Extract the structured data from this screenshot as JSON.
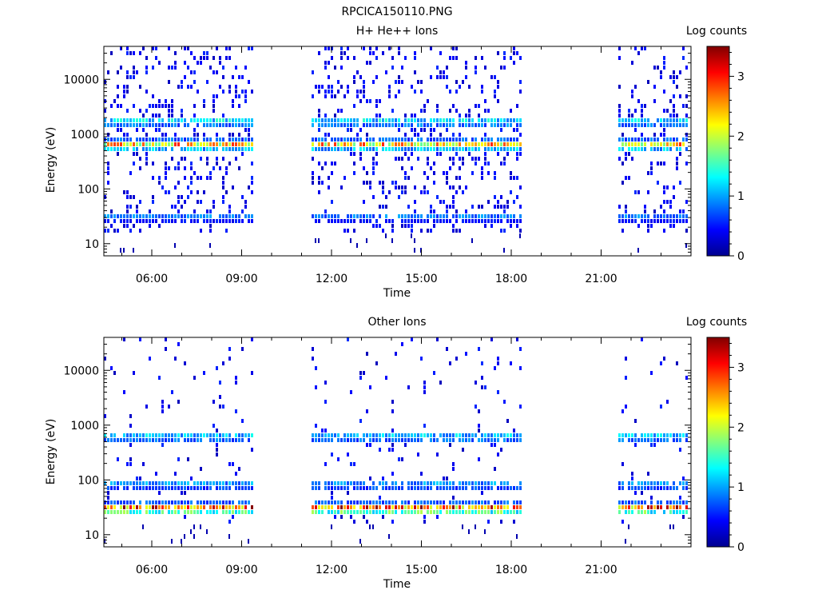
{
  "figure": {
    "title": "RPCICA150110.PNG"
  },
  "chart_data": [
    {
      "type": "heatmap",
      "title": "H+ He++ Ions",
      "xlabel": "Time",
      "ylabel": "Energy (eV)",
      "x_unit": "hours UT",
      "xlim": [
        4.4,
        24.0
      ],
      "ylim": [
        6,
        40000
      ],
      "y_scale": "log",
      "x_ticks": [
        6,
        9,
        12,
        15,
        18,
        21
      ],
      "x_tick_labels": [
        "06:00",
        "09:00",
        "12:00",
        "15:00",
        "18:00",
        "21:00"
      ],
      "y_ticks": [
        10,
        100,
        1000,
        10000
      ],
      "y_tick_labels": [
        "10",
        "100",
        "1000",
        "10000"
      ],
      "data_intervals": [
        [
          4.4,
          9.45
        ],
        [
          11.3,
          18.4
        ],
        [
          21.55,
          24.0
        ]
      ],
      "colorbar": {
        "label": "Log counts",
        "min": 0,
        "max": 3.5,
        "ticks": [
          0,
          1,
          2,
          3
        ],
        "tick_labels": [
          "0",
          "1",
          "2",
          "3"
        ]
      },
      "energy_bands": [
        {
          "energy_ev": 630,
          "log_counts": 2.7
        },
        {
          "energy_ev": 1650,
          "log_counts": 1.5
        },
        {
          "energy_ev": 30,
          "log_counts": 1.0
        }
      ],
      "background_level": 0.2
    },
    {
      "type": "heatmap",
      "title": "Other Ions",
      "xlabel": "Time",
      "ylabel": "Energy (eV)",
      "x_unit": "hours UT",
      "xlim": [
        4.4,
        24.0
      ],
      "ylim": [
        6,
        40000
      ],
      "y_scale": "log",
      "x_ticks": [
        6,
        9,
        12,
        15,
        18,
        21
      ],
      "x_tick_labels": [
        "06:00",
        "09:00",
        "12:00",
        "15:00",
        "18:00",
        "21:00"
      ],
      "y_ticks": [
        10,
        100,
        1000,
        10000
      ],
      "y_tick_labels": [
        "10",
        "100",
        "1000",
        "10000"
      ],
      "data_intervals": [
        [
          4.4,
          9.45
        ],
        [
          11.3,
          18.4
        ],
        [
          21.55,
          24.0
        ]
      ],
      "colorbar": {
        "label": "Log counts",
        "min": 0,
        "max": 3.5,
        "ticks": [
          0,
          1,
          2,
          3
        ],
        "tick_labels": [
          "0",
          "1",
          "2",
          "3"
        ]
      },
      "energy_bands": [
        {
          "energy_ev": 30,
          "log_counts": 3.3
        },
        {
          "energy_ev": 80,
          "log_counts": 1.2
        },
        {
          "energy_ev": 600,
          "log_counts": 1.4
        }
      ],
      "background_level": 0.05
    }
  ]
}
